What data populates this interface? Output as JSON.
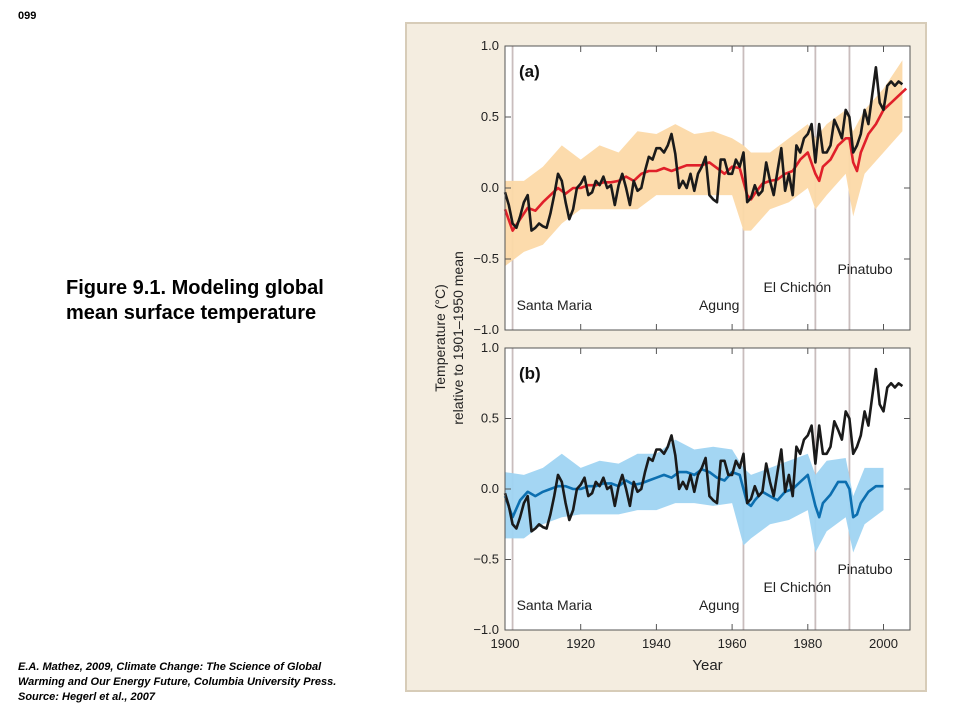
{
  "page": {
    "number": "099",
    "title": "Figure 9.1.  Modeling global mean surface temperature",
    "credit": "E.A. Mathez, 2009, Climate Change: The Science of Global Warming and Our Energy Future, Columbia University Press.  Source: Hegerl et al., 2007"
  },
  "colors": {
    "panel_background": "#f4ede0",
    "observed": "#1a1a1a",
    "model_all_forcing": "#e0202a",
    "model_all_band": "#fcd9a8",
    "model_natural": "#0c6fb0",
    "model_natural_band": "#9fd4f2",
    "volcano_line": "#c9bdbd"
  },
  "chart_data": {
    "type": "line",
    "ylabel": [
      "Temperature (°C)",
      "relative to 1901–1950 mean"
    ],
    "xlabel": "Year",
    "xlim": [
      1900,
      2007
    ],
    "ylim": [
      -1.0,
      1.0
    ],
    "xticks": [
      "1900",
      "1920",
      "1940",
      "1960",
      "1980",
      "2000"
    ],
    "yticks": [
      "1.0",
      "0.5",
      "0.0",
      "−0.5",
      "−1.0"
    ],
    "volcanoes": [
      {
        "name": "Santa Maria",
        "year": 1902
      },
      {
        "name": "Agung",
        "year": 1963
      },
      {
        "name": "El Chichón",
        "year": 1982
      },
      {
        "name": "Pinatubo",
        "year": 1991
      }
    ],
    "panels": [
      {
        "label": "(a)",
        "series": [
          {
            "role": "observed",
            "x": [
              1900,
              1901,
              1902,
              1903,
              1904,
              1905,
              1906,
              1907,
              1908,
              1909,
              1910,
              1911,
              1912,
              1913,
              1914,
              1915,
              1916,
              1917,
              1918,
              1919,
              1920,
              1921,
              1922,
              1923,
              1924,
              1925,
              1926,
              1927,
              1928,
              1929,
              1930,
              1931,
              1932,
              1933,
              1934,
              1935,
              1936,
              1937,
              1938,
              1939,
              1940,
              1941,
              1942,
              1943,
              1944,
              1945,
              1946,
              1947,
              1948,
              1949,
              1950,
              1951,
              1952,
              1953,
              1954,
              1955,
              1956,
              1957,
              1958,
              1959,
              1960,
              1961,
              1962,
              1963,
              1964,
              1965,
              1966,
              1967,
              1968,
              1969,
              1970,
              1971,
              1972,
              1973,
              1974,
              1975,
              1976,
              1977,
              1978,
              1979,
              1980,
              1981,
              1982,
              1983,
              1984,
              1985,
              1986,
              1987,
              1988,
              1989,
              1990,
              1991,
              1992,
              1993,
              1994,
              1995,
              1996,
              1997,
              1998,
              1999,
              2000,
              2001,
              2002,
              2003,
              2004,
              2005
            ],
            "values": [
              -0.03,
              -0.12,
              -0.25,
              -0.28,
              -0.2,
              -0.1,
              -0.05,
              -0.3,
              -0.28,
              -0.25,
              -0.27,
              -0.28,
              -0.18,
              -0.05,
              0.1,
              0.05,
              -0.1,
              -0.22,
              -0.15,
              0.0,
              0.03,
              0.08,
              -0.05,
              -0.03,
              0.05,
              0.02,
              0.08,
              0.0,
              0.02,
              -0.12,
              0.02,
              0.1,
              0.0,
              -0.12,
              0.05,
              -0.02,
              0.0,
              0.12,
              0.22,
              0.2,
              0.28,
              0.28,
              0.25,
              0.3,
              0.38,
              0.24,
              0.0,
              0.05,
              0.0,
              0.1,
              -0.02,
              0.1,
              0.15,
              0.22,
              -0.05,
              -0.08,
              -0.1,
              0.2,
              0.2,
              0.1,
              0.1,
              0.2,
              0.15,
              0.25,
              -0.1,
              -0.07,
              0.02,
              -0.05,
              -0.02,
              0.18,
              0.05,
              -0.05,
              0.12,
              0.28,
              -0.02,
              0.1,
              -0.05,
              0.3,
              0.25,
              0.35,
              0.38,
              0.45,
              0.18,
              0.45,
              0.25,
              0.25,
              0.3,
              0.48,
              0.42,
              0.35,
              0.55,
              0.5,
              0.25,
              0.3,
              0.38,
              0.55,
              0.45,
              0.65,
              0.85,
              0.6,
              0.55,
              0.72,
              0.75,
              0.72,
              0.75,
              0.73
            ]
          },
          {
            "role": "model_all_forcing",
            "x": [
              1900,
              1902,
              1904,
              1906,
              1908,
              1910,
              1912,
              1914,
              1916,
              1918,
              1920,
              1922,
              1924,
              1926,
              1928,
              1930,
              1932,
              1934,
              1936,
              1938,
              1940,
              1942,
              1944,
              1946,
              1948,
              1950,
              1952,
              1954,
              1956,
              1958,
              1960,
              1962,
              1964,
              1965,
              1966,
              1968,
              1970,
              1972,
              1974,
              1976,
              1978,
              1980,
              1982,
              1983,
              1984,
              1986,
              1988,
              1990,
              1991,
              1992,
              1993,
              1994,
              1996,
              1998,
              2000,
              2002,
              2004,
              2006
            ],
            "values": [
              -0.15,
              -0.3,
              -0.22,
              -0.14,
              -0.16,
              -0.1,
              -0.05,
              0.0,
              -0.04,
              0.0,
              0.0,
              0.02,
              0.02,
              0.04,
              0.04,
              0.05,
              0.08,
              0.05,
              0.1,
              0.12,
              0.12,
              0.14,
              0.12,
              0.14,
              0.16,
              0.16,
              0.16,
              0.18,
              0.14,
              0.1,
              0.15,
              0.14,
              -0.05,
              -0.08,
              -0.04,
              0.03,
              0.05,
              0.06,
              0.1,
              0.12,
              0.2,
              0.25,
              0.1,
              0.05,
              0.15,
              0.2,
              0.3,
              0.35,
              0.35,
              0.18,
              0.12,
              0.25,
              0.38,
              0.45,
              0.55,
              0.6,
              0.65,
              0.7
            ]
          },
          {
            "role": "model_all_band",
            "x": [
              1900,
              1905,
              1910,
              1915,
              1920,
              1925,
              1930,
              1935,
              1940,
              1945,
              1950,
              1955,
              1960,
              1963,
              1965,
              1970,
              1975,
              1980,
              1982,
              1985,
              1990,
              1992,
              1995,
              2000,
              2005
            ],
            "upper": [
              0.05,
              0.05,
              0.15,
              0.3,
              0.2,
              0.3,
              0.25,
              0.4,
              0.38,
              0.45,
              0.38,
              0.4,
              0.35,
              0.3,
              0.25,
              0.25,
              0.35,
              0.45,
              0.35,
              0.45,
              0.55,
              0.4,
              0.55,
              0.7,
              0.9
            ],
            "lower": [
              -0.55,
              -0.45,
              -0.4,
              -0.25,
              -0.15,
              -0.15,
              -0.15,
              -0.15,
              -0.05,
              -0.05,
              -0.05,
              -0.05,
              -0.05,
              -0.3,
              -0.3,
              -0.15,
              -0.1,
              0.0,
              -0.15,
              -0.05,
              0.1,
              -0.2,
              0.1,
              0.25,
              0.4
            ]
          }
        ]
      },
      {
        "label": "(b)",
        "series": [
          {
            "role": "observed",
            "x": [
              1900,
              1901,
              1902,
              1903,
              1904,
              1905,
              1906,
              1907,
              1908,
              1909,
              1910,
              1911,
              1912,
              1913,
              1914,
              1915,
              1916,
              1917,
              1918,
              1919,
              1920,
              1921,
              1922,
              1923,
              1924,
              1925,
              1926,
              1927,
              1928,
              1929,
              1930,
              1931,
              1932,
              1933,
              1934,
              1935,
              1936,
              1937,
              1938,
              1939,
              1940,
              1941,
              1942,
              1943,
              1944,
              1945,
              1946,
              1947,
              1948,
              1949,
              1950,
              1951,
              1952,
              1953,
              1954,
              1955,
              1956,
              1957,
              1958,
              1959,
              1960,
              1961,
              1962,
              1963,
              1964,
              1965,
              1966,
              1967,
              1968,
              1969,
              1970,
              1971,
              1972,
              1973,
              1974,
              1975,
              1976,
              1977,
              1978,
              1979,
              1980,
              1981,
              1982,
              1983,
              1984,
              1985,
              1986,
              1987,
              1988,
              1989,
              1990,
              1991,
              1992,
              1993,
              1994,
              1995,
              1996,
              1997,
              1998,
              1999,
              2000,
              2001,
              2002,
              2003,
              2004,
              2005
            ],
            "values": [
              -0.03,
              -0.12,
              -0.25,
              -0.28,
              -0.2,
              -0.1,
              -0.05,
              -0.3,
              -0.28,
              -0.25,
              -0.27,
              -0.28,
              -0.18,
              -0.05,
              0.1,
              0.05,
              -0.1,
              -0.22,
              -0.15,
              0.0,
              0.03,
              0.08,
              -0.05,
              -0.03,
              0.05,
              0.02,
              0.08,
              0.0,
              0.02,
              -0.12,
              0.02,
              0.1,
              0.0,
              -0.12,
              0.05,
              -0.02,
              0.0,
              0.12,
              0.22,
              0.2,
              0.28,
              0.28,
              0.25,
              0.3,
              0.38,
              0.24,
              0.0,
              0.05,
              0.0,
              0.1,
              -0.02,
              0.1,
              0.15,
              0.22,
              -0.05,
              -0.08,
              -0.1,
              0.2,
              0.2,
              0.1,
              0.1,
              0.2,
              0.15,
              0.25,
              -0.1,
              -0.07,
              0.02,
              -0.05,
              -0.02,
              0.18,
              0.05,
              -0.05,
              0.12,
              0.28,
              -0.02,
              0.1,
              -0.05,
              0.3,
              0.25,
              0.35,
              0.38,
              0.45,
              0.18,
              0.45,
              0.25,
              0.25,
              0.3,
              0.48,
              0.42,
              0.35,
              0.55,
              0.5,
              0.25,
              0.3,
              0.38,
              0.55,
              0.45,
              0.65,
              0.85,
              0.6,
              0.55,
              0.72,
              0.75,
              0.72,
              0.75,
              0.73
            ]
          },
          {
            "role": "model_natural",
            "x": [
              1900,
              1902,
              1904,
              1906,
              1908,
              1910,
              1912,
              1914,
              1916,
              1918,
              1920,
              1922,
              1924,
              1926,
              1928,
              1930,
              1932,
              1934,
              1936,
              1938,
              1940,
              1942,
              1944,
              1946,
              1948,
              1950,
              1952,
              1954,
              1956,
              1958,
              1960,
              1962,
              1964,
              1965,
              1966,
              1968,
              1970,
              1972,
              1974,
              1976,
              1978,
              1980,
              1982,
              1983,
              1984,
              1986,
              1988,
              1990,
              1991,
              1992,
              1993,
              1994,
              1996,
              1998,
              2000
            ],
            "values": [
              -0.05,
              -0.2,
              -0.08,
              -0.02,
              -0.05,
              -0.02,
              0.0,
              0.02,
              0.02,
              0.0,
              0.0,
              0.02,
              0.02,
              0.04,
              0.04,
              0.02,
              0.06,
              0.03,
              0.04,
              0.06,
              0.08,
              0.1,
              0.08,
              0.12,
              0.12,
              0.1,
              0.14,
              0.12,
              0.08,
              0.06,
              0.12,
              0.1,
              -0.1,
              -0.12,
              -0.08,
              -0.02,
              -0.05,
              -0.08,
              -0.02,
              0.0,
              0.05,
              0.1,
              -0.12,
              -0.2,
              -0.1,
              -0.04,
              0.05,
              0.05,
              0.0,
              -0.2,
              -0.18,
              -0.1,
              -0.02,
              0.02,
              0.02
            ]
          },
          {
            "role": "model_natural_band",
            "x": [
              1900,
              1905,
              1910,
              1915,
              1920,
              1925,
              1930,
              1935,
              1940,
              1945,
              1950,
              1955,
              1960,
              1963,
              1965,
              1970,
              1975,
              1980,
              1982,
              1985,
              1990,
              1992,
              1995,
              2000
            ],
            "upper": [
              0.12,
              0.1,
              0.15,
              0.25,
              0.15,
              0.2,
              0.18,
              0.25,
              0.25,
              0.35,
              0.28,
              0.3,
              0.28,
              0.15,
              0.1,
              0.15,
              0.2,
              0.25,
              0.1,
              0.2,
              0.22,
              -0.05,
              0.15,
              0.15
            ],
            "lower": [
              -0.35,
              -0.35,
              -0.25,
              -0.2,
              -0.18,
              -0.18,
              -0.18,
              -0.15,
              -0.15,
              -0.1,
              -0.1,
              -0.12,
              -0.1,
              -0.4,
              -0.35,
              -0.25,
              -0.22,
              -0.15,
              -0.45,
              -0.3,
              -0.2,
              -0.45,
              -0.25,
              -0.15
            ]
          }
        ]
      }
    ]
  }
}
